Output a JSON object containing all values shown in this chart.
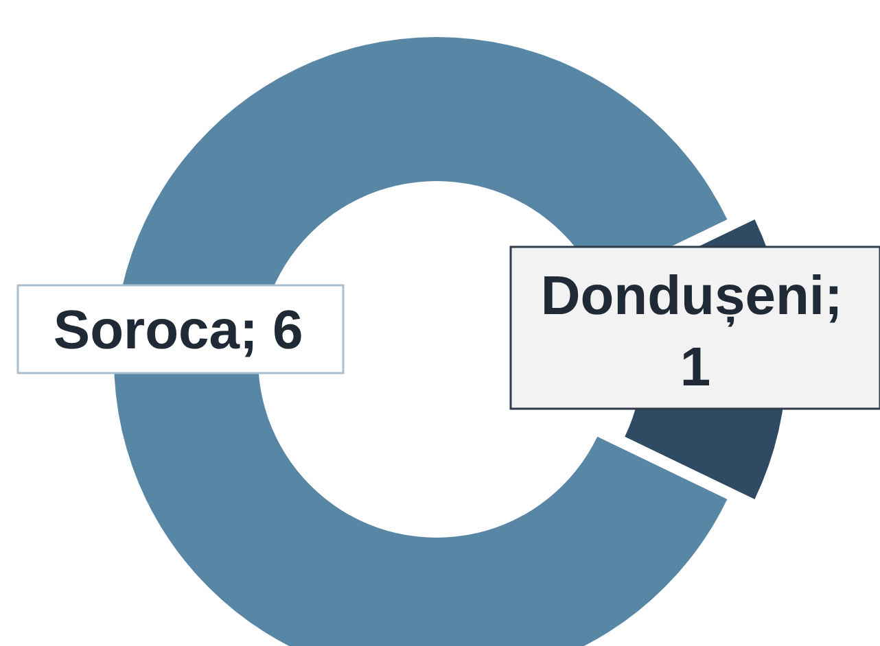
{
  "chart_data": {
    "type": "donut",
    "categories": [
      "Soroca",
      "Dondușeni"
    ],
    "values": [
      6,
      1
    ],
    "colors": [
      "#5886a5",
      "#2f4b63"
    ],
    "data_labels": true,
    "annotations": [
      ";",
      ";"
    ]
  }
}
